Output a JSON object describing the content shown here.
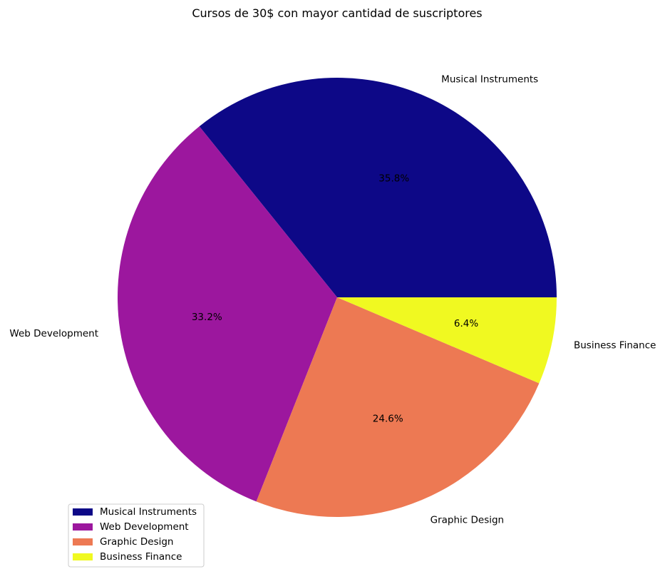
{
  "chart_data": {
    "type": "pie",
    "title": "Cursos de 30$ con mayor cantidad de suscriptores",
    "categories": [
      "Musical Instruments",
      "Web Development",
      "Graphic Design",
      "Business Finance"
    ],
    "values": [
      35.8,
      33.2,
      24.6,
      6.4
    ],
    "value_labels": [
      "35.8%",
      "33.2%",
      "24.6%",
      "6.4%"
    ],
    "colors": [
      "#0d0887",
      "#9c179e",
      "#ed7953",
      "#f0f921"
    ],
    "start_angle_deg": 0,
    "direction": "counterclockwise",
    "legend": {
      "placement": "lower-left",
      "entries": [
        "Musical Instruments",
        "Web Development",
        "Graphic Design",
        "Business Finance"
      ]
    }
  }
}
